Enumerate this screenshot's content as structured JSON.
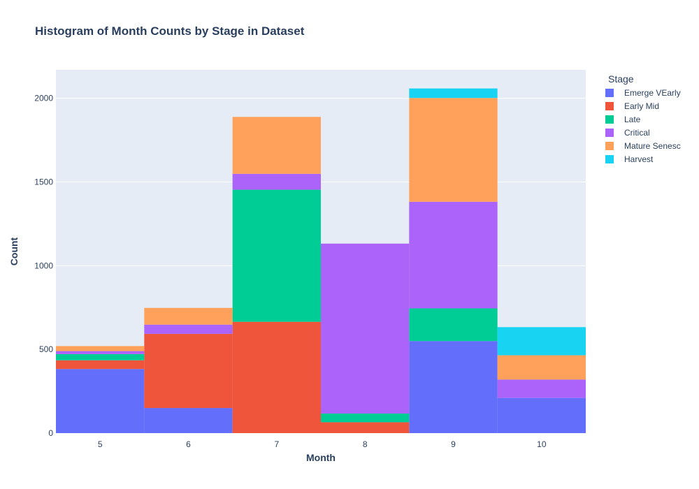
{
  "chart_data": {
    "type": "bar",
    "barmode": "stack",
    "title": "Histogram of Month Counts by Stage in Dataset",
    "xlabel": "Month",
    "ylabel": "Count",
    "categories": [
      "5",
      "6",
      "7",
      "8",
      "9",
      "10"
    ],
    "ylim": [
      0,
      2170
    ],
    "yticks": [
      0,
      500,
      1000,
      1500,
      2000
    ],
    "grid": true,
    "legend_title": "Stage",
    "legend_position": "right",
    "plot_background": "#e5ecf6",
    "series": [
      {
        "name": "Emerge VEarly",
        "color": "#636efa",
        "values": [
          383,
          150,
          0,
          0,
          550,
          210
        ]
      },
      {
        "name": "Early Mid",
        "color": "#ef553b",
        "values": [
          52,
          443,
          665,
          65,
          0,
          0
        ]
      },
      {
        "name": "Late",
        "color": "#00cc96",
        "values": [
          37,
          0,
          789,
          52,
          195,
          0
        ]
      },
      {
        "name": "Critical",
        "color": "#ab63fa",
        "values": [
          18,
          55,
          95,
          1015,
          637,
          110
        ]
      },
      {
        "name": "Mature Senesc",
        "color": "#ffa15a",
        "values": [
          30,
          100,
          340,
          0,
          620,
          145
        ]
      },
      {
        "name": "Harvest",
        "color": "#19d3f3",
        "values": [
          0,
          0,
          0,
          0,
          57,
          168
        ]
      }
    ]
  }
}
